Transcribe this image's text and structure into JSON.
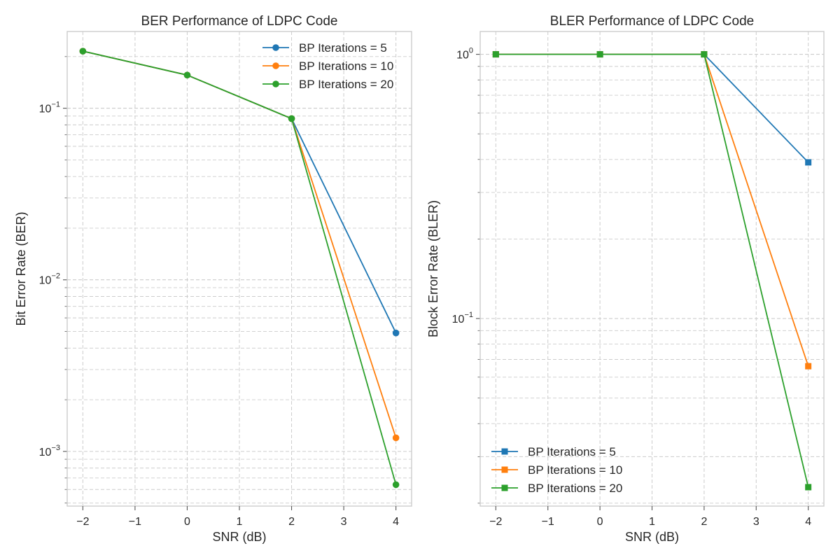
{
  "chart_data": [
    {
      "type": "line",
      "title": "BER Performance of LDPC Code",
      "xlabel": "SNR (dB)",
      "ylabel": "Bit Error Rate (BER)",
      "yscale": "log",
      "xlim": [
        -2.3,
        4.3
      ],
      "ylim": [
        0.00048,
        0.28
      ],
      "xticks": [
        -2,
        -1,
        0,
        1,
        2,
        3,
        4
      ],
      "xtick_labels": [
        "−2",
        "−1",
        "0",
        "1",
        "2",
        "3",
        "4"
      ],
      "yticks": [
        {
          "value": 0.1,
          "exp": "−1"
        },
        {
          "value": 0.01,
          "exp": "−2"
        },
        {
          "value": 0.001,
          "exp": "−3"
        }
      ],
      "ytick_base": "10",
      "grid": true,
      "legend_position": "top-right",
      "marker": "circle",
      "x": [
        -2,
        0,
        2,
        4
      ],
      "series": [
        {
          "name": "BP Iterations = 5",
          "color": "#1f77b4",
          "values": [
            0.215,
            0.156,
            0.087,
            0.0049
          ]
        },
        {
          "name": "BP Iterations = 10",
          "color": "#ff7f0e",
          "values": [
            0.215,
            0.156,
            0.087,
            0.0012
          ]
        },
        {
          "name": "BP Iterations = 20",
          "color": "#2ca02c",
          "values": [
            0.215,
            0.156,
            0.087,
            0.00064
          ]
        }
      ]
    },
    {
      "type": "line",
      "title": "BLER Performance of LDPC Code",
      "xlabel": "SNR (dB)",
      "ylabel": "Block Error Rate (BLER)",
      "yscale": "log",
      "xlim": [
        -2.3,
        4.3
      ],
      "ylim": [
        0.0195,
        1.22
      ],
      "xticks": [
        -2,
        -1,
        0,
        1,
        2,
        3,
        4
      ],
      "xtick_labels": [
        "−2",
        "−1",
        "0",
        "1",
        "2",
        "3",
        "4"
      ],
      "yticks": [
        {
          "value": 1,
          "exp": "0"
        },
        {
          "value": 0.1,
          "exp": "−1"
        }
      ],
      "ytick_base": "10",
      "grid": true,
      "legend_position": "bottom-left",
      "marker": "square",
      "x": [
        -2,
        0,
        2,
        4
      ],
      "series": [
        {
          "name": "BP Iterations = 5",
          "color": "#1f77b4",
          "values": [
            1.0,
            1.0,
            1.0,
            0.39
          ]
        },
        {
          "name": "BP Iterations = 10",
          "color": "#ff7f0e",
          "values": [
            1.0,
            1.0,
            1.0,
            0.066
          ]
        },
        {
          "name": "BP Iterations = 20",
          "color": "#2ca02c",
          "values": [
            1.0,
            1.0,
            1.0,
            0.023
          ]
        }
      ]
    }
  ]
}
